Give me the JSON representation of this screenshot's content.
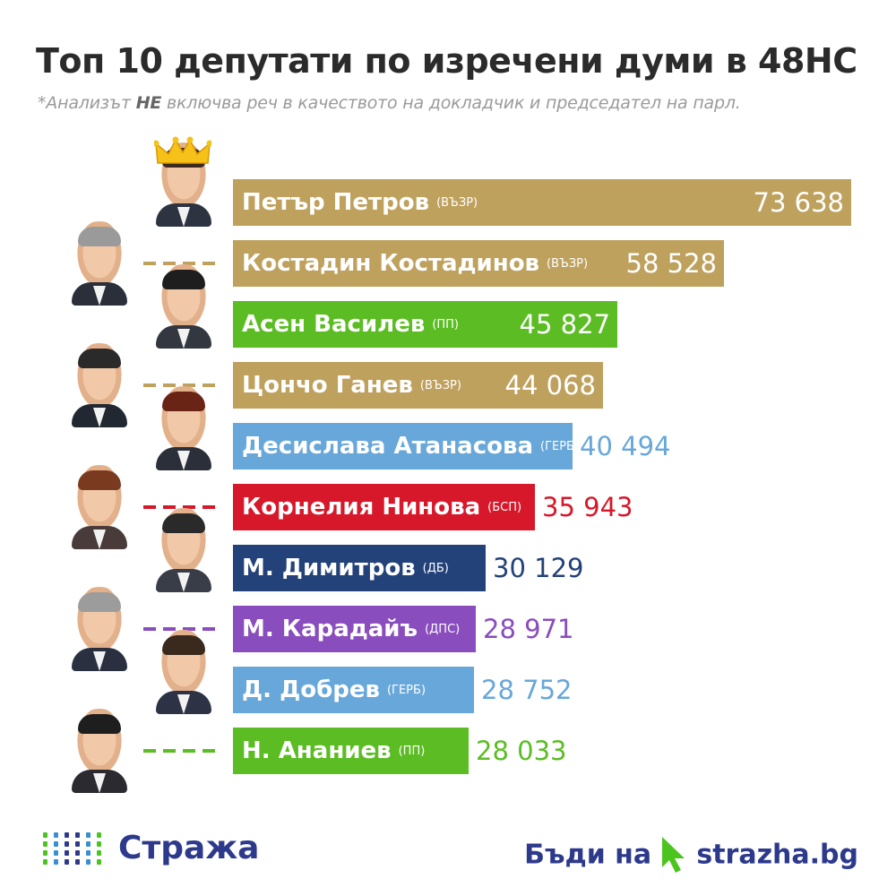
{
  "title": "Топ 10 депутати по изречени думи в 48НС",
  "subtitle": {
    "prefix": "*Анализът ",
    "emphasis": "НЕ",
    "suffix": " включва реч в качеството на докладчик и председател на парл."
  },
  "colors": {
    "ВЪЗР": "#bfa15e",
    "ПП": "#5bbd23",
    "ГЕРБ": "#68a7d9",
    "БСП": "#d7182a",
    "ДБ": "#23427a",
    "ДПС": "#8a4dbd"
  },
  "chart_data": {
    "type": "bar",
    "orientation": "horizontal",
    "categories": [
      "Петър Петров",
      "Костадин Костадинов",
      "Асен Василев",
      "Цончо Ганев",
      "Десислава Атанасова",
      "Корнелия Нинова",
      "М. Димитров",
      "М. Карадайъ",
      "Д. Добрев",
      "Н. Ананиев"
    ],
    "parties": [
      "ВЪЗР",
      "ВЪЗР",
      "ПП",
      "ВЪЗР",
      "ГЕРБ",
      "БСП",
      "ДБ",
      "ДПС",
      "ГЕРБ",
      "ПП"
    ],
    "values": [
      73638,
      58528,
      45827,
      44068,
      40494,
      35943,
      30129,
      28971,
      28752,
      28033
    ],
    "value_labels": [
      "73 638",
      "58 528",
      "45 827",
      "44 068",
      "40 494",
      "35 943",
      "30 129",
      "28 971",
      "28 752",
      "28 033"
    ],
    "value_inside_bar": [
      true,
      true,
      true,
      true,
      false,
      false,
      false,
      false,
      false,
      false
    ]
  },
  "avatars": [
    {
      "hair": "#3a2a1e",
      "suit": "#2d3340"
    },
    {
      "hair": "#9a9a9a",
      "suit": "#2a2f3a"
    },
    {
      "hair": "#1e1e1e",
      "suit": "#333840"
    },
    {
      "hair": "#2a2a2a",
      "suit": "#222831"
    },
    {
      "hair": "#6a2416",
      "suit": "#2b2f3a"
    },
    {
      "hair": "#7a3a20",
      "suit": "#4a3b3b"
    },
    {
      "hair": "#2a2a2a",
      "suit": "#393d47"
    },
    {
      "hair": "#9c9c9c",
      "suit": "#2a3040"
    },
    {
      "hair": "#3a2a1e",
      "suit": "#2d3344"
    },
    {
      "hair": "#1e1e1e",
      "suit": "#2a2a30"
    }
  ],
  "crown_icon": "crown-icon",
  "logo": {
    "icon": "dot-grid-logo-icon",
    "text": "Стража"
  },
  "cta": {
    "text": "Бъди на",
    "icon": "cursor-arrow-icon",
    "site": "strazha.bg"
  }
}
